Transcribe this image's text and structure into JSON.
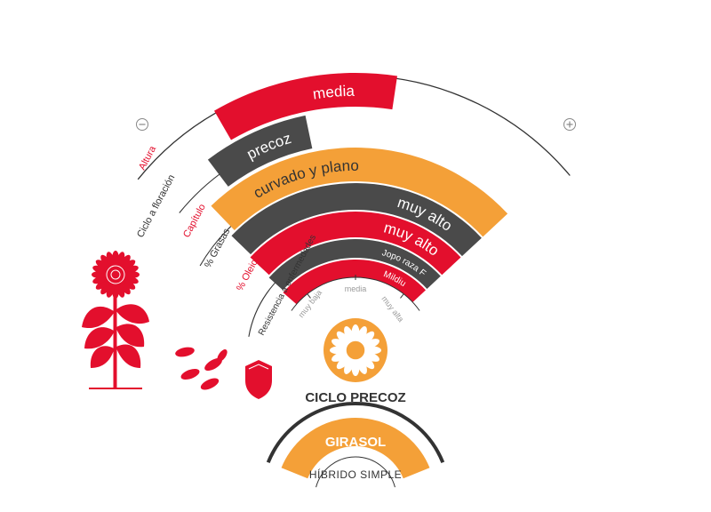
{
  "colors": {
    "red": "#e30f2d",
    "dark_gray": "#4a4a4a",
    "orange": "#f4a038",
    "label_gray": "#9a9a9a",
    "outline": "#333333"
  },
  "scale": {
    "minus_icon": "minus-circle-icon",
    "plus_icon": "plus-circle-icon",
    "ticks": [
      "muy baja",
      "media",
      "muy alta"
    ]
  },
  "bars": [
    {
      "id": "altura",
      "label": "Altura",
      "value": "media",
      "color": "red",
      "level": 0.5
    },
    {
      "id": "ciclo_floracion",
      "label": "Ciclo a floración",
      "value": "precoz",
      "color": "dark_gray",
      "level": 0.3
    },
    {
      "id": "capitulo",
      "label": "Capítulo",
      "value": "curvado y plano",
      "color": "orange",
      "level": 1.0
    },
    {
      "id": "grasas",
      "label": "% Grasas",
      "value": "muy alto",
      "color": "dark_gray",
      "level": 1.0
    },
    {
      "id": "oleico",
      "label": "% Oleico",
      "value": "muy alto",
      "color": "red",
      "level": 1.0
    },
    {
      "id": "jopo",
      "label": "Resistencia a enfermedades",
      "value": "Jopo raza F",
      "color": "dark_gray",
      "level": 1.0
    },
    {
      "id": "mildiu",
      "label": "",
      "value": "Mildiu",
      "color": "red",
      "level": 1.0
    }
  ],
  "product": {
    "cycle": "CICLO PRECOZ",
    "name": "GIRASOL",
    "type": "HÍBRIDO SIMPLE"
  },
  "icons": [
    "sunflower-plant-icon",
    "sunflower-seeds-icon",
    "shield-icon",
    "sunflower-flower-icon"
  ]
}
